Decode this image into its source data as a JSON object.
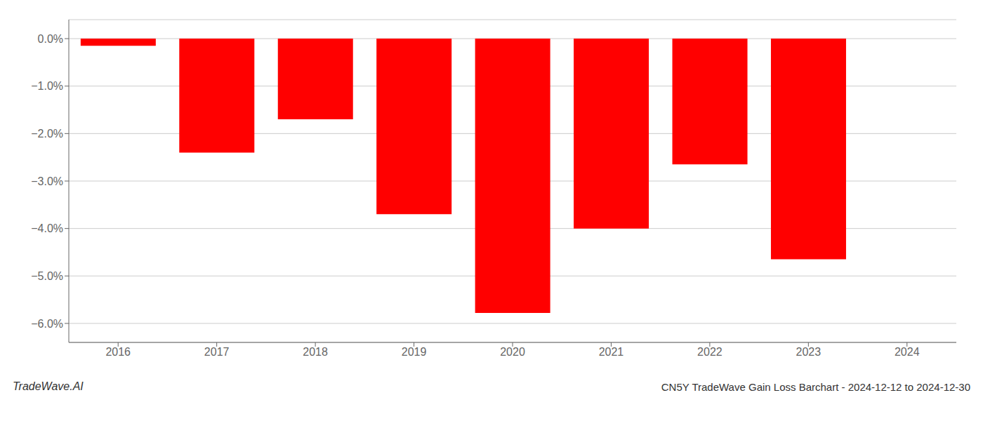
{
  "chart_data": {
    "type": "bar",
    "title": "CN5Y TradeWave Gain Loss Barchart - 2024-12-12 to 2024-12-30",
    "annotations": [
      "TradeWave.AI"
    ],
    "categories": [
      "2016",
      "2017",
      "2018",
      "2019",
      "2020",
      "2021",
      "2022",
      "2023",
      "2024"
    ],
    "values": [
      -0.15,
      -2.4,
      -1.7,
      -3.7,
      -5.78,
      -4.0,
      -2.65,
      -4.65,
      0.0
    ],
    "color": "#ff0000",
    "ylim": [
      -6.4,
      0.4
    ],
    "yticks": [
      {
        "value": 0.0,
        "label": "0.0%"
      },
      {
        "value": -1.0,
        "label": "−1.0%"
      },
      {
        "value": -2.0,
        "label": "−2.0%"
      },
      {
        "value": -3.0,
        "label": "−3.0%"
      },
      {
        "value": -4.0,
        "label": "−4.0%"
      },
      {
        "value": -5.0,
        "label": "−5.0%"
      },
      {
        "value": -6.0,
        "label": "−6.0%"
      }
    ],
    "grid": true
  }
}
